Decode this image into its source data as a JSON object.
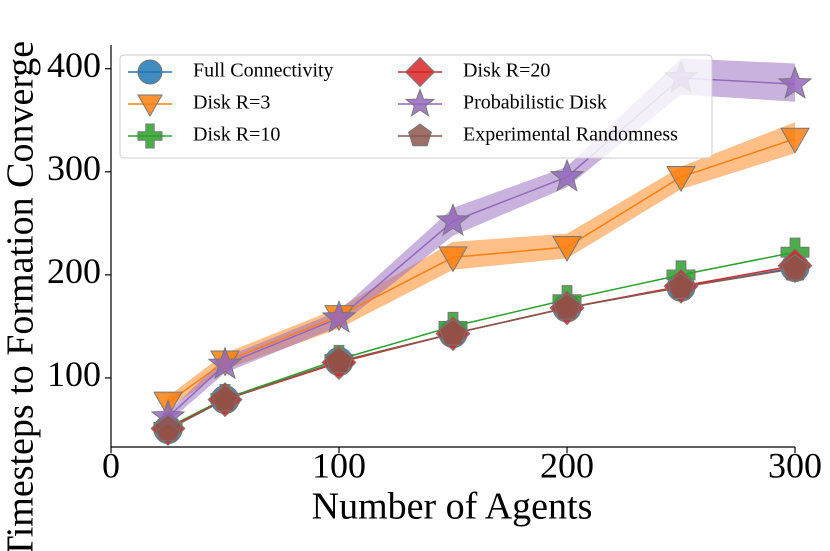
{
  "chart_data": {
    "type": "line",
    "xlabel": "Number of Agents",
    "ylabel": "Timesteps to Formation Converge",
    "x": [
      25,
      50,
      100,
      150,
      200,
      250,
      300
    ],
    "xlim": [
      0,
      300
    ],
    "xticks": [
      0,
      100,
      200,
      300
    ],
    "ylim": [
      33,
      423
    ],
    "yticks": [
      100,
      200,
      300,
      400
    ],
    "legend": "upper left",
    "series": [
      {
        "name": "Full Connectivity",
        "color": "#1f77b4",
        "marker": "o",
        "values": [
          50,
          79,
          116,
          143,
          168,
          188,
          207
        ]
      },
      {
        "name": "Disk R=3",
        "color": "#ff7f0e",
        "marker": "v",
        "values": [
          76,
          116,
          160,
          217,
          227,
          295,
          332
        ],
        "lower": [
          70,
          108,
          148,
          205,
          216,
          283,
          318
        ],
        "upper": [
          82,
          124,
          168,
          232,
          240,
          305,
          348
        ]
      },
      {
        "name": "Disk R=10",
        "color": "#2ca02c",
        "marker": "P",
        "values": [
          52,
          80,
          118,
          150,
          176,
          200,
          222
        ]
      },
      {
        "name": "Disk R=20",
        "color": "#d62728",
        "marker": "D",
        "values": [
          51,
          79,
          115,
          143,
          168,
          189,
          209
        ]
      },
      {
        "name": "Probabilistic Disk",
        "color": "#9467bd",
        "marker": "*",
        "values": [
          62,
          113,
          158,
          252,
          295,
          391,
          385
        ],
        "lower": [
          57,
          105,
          150,
          238,
          285,
          375,
          368
        ],
        "upper": [
          67,
          120,
          165,
          265,
          305,
          410,
          405
        ]
      },
      {
        "name": "Experimental Randomness",
        "color": "#8c564b",
        "marker": "p",
        "values": [
          50,
          79,
          116,
          143,
          168,
          188,
          206
        ]
      }
    ]
  }
}
